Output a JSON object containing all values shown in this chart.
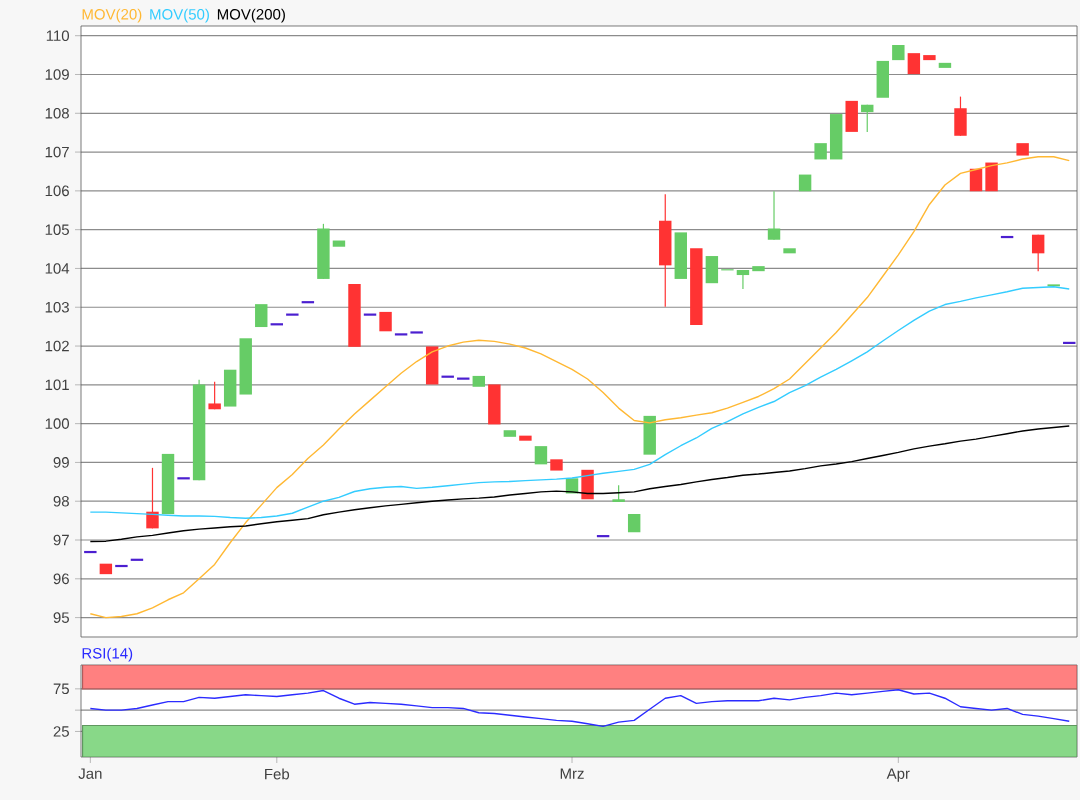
{
  "chart_data": [
    {
      "type": "candlestick",
      "legend": "top left",
      "grid": "y",
      "tick_labels": "y",
      "categories": [
        null,
        null,
        null,
        null,
        null,
        null,
        null,
        null,
        null,
        null,
        null,
        null,
        null,
        null,
        null,
        null,
        null,
        null,
        null,
        null,
        null,
        null,
        null,
        null,
        null,
        null,
        null,
        null,
        null,
        null,
        null,
        null,
        null,
        null,
        null,
        null,
        null,
        null,
        null,
        null,
        null,
        null,
        null,
        null,
        null,
        null,
        null,
        null,
        null,
        null,
        null,
        null,
        null,
        null,
        null,
        null,
        null,
        null,
        null,
        null,
        null,
        null,
        null,
        null
      ],
      "ylim": [
        94.5,
        110.25
      ],
      "yticks": [
        95,
        96,
        97,
        98,
        99,
        100,
        101,
        102,
        103,
        104,
        105,
        106,
        107,
        108,
        109,
        110
      ],
      "ohlc": [
        [
          96.69,
          96.69,
          96.69,
          96.69
        ],
        [
          96.39,
          96.39,
          96.12,
          96.12
        ],
        [
          96.33,
          96.33,
          96.33,
          96.33
        ],
        [
          96.49,
          96.49,
          96.49,
          96.49
        ],
        [
          97.73,
          98.86,
          97.3,
          97.3
        ],
        [
          97.67,
          99.22,
          97.67,
          99.22
        ],
        [
          98.59,
          98.59,
          98.59,
          98.59
        ],
        [
          98.54,
          101.13,
          98.54,
          101.01
        ],
        [
          100.52,
          101.08,
          100.37,
          100.37
        ],
        [
          100.44,
          101.39,
          100.44,
          101.39
        ],
        [
          100.75,
          102.2,
          100.75,
          102.2
        ],
        [
          102.49,
          103.08,
          102.49,
          103.08
        ],
        [
          102.56,
          102.56,
          102.56,
          102.56
        ],
        [
          102.81,
          102.81,
          102.81,
          102.81
        ],
        [
          103.13,
          103.13,
          103.13,
          103.13
        ],
        [
          103.73,
          105.15,
          103.73,
          105.03
        ],
        [
          104.56,
          104.72,
          104.56,
          104.72
        ],
        [
          103.6,
          103.6,
          101.98,
          101.98
        ],
        [
          102.81,
          102.81,
          102.81,
          102.81
        ],
        [
          102.88,
          102.88,
          102.38,
          102.38
        ],
        [
          102.3,
          102.3,
          102.3,
          102.3
        ],
        [
          102.35,
          102.35,
          102.35,
          102.35
        ],
        [
          101.99,
          101.99,
          101.01,
          101.01
        ],
        [
          101.21,
          101.21,
          101.21,
          101.21
        ],
        [
          101.16,
          101.16,
          101.16,
          101.16
        ],
        [
          100.95,
          101.23,
          100.95,
          101.23
        ],
        [
          101.01,
          101.01,
          99.98,
          99.98
        ],
        [
          99.66,
          99.83,
          99.66,
          99.83
        ],
        [
          99.69,
          99.69,
          99.56,
          99.56
        ],
        [
          98.95,
          99.42,
          98.95,
          99.42
        ],
        [
          99.08,
          99.08,
          98.79,
          98.79
        ],
        [
          98.2,
          98.59,
          98.2,
          98.59
        ],
        [
          98.81,
          98.81,
          98.05,
          98.05
        ],
        [
          97.1,
          97.1,
          97.1,
          97.1
        ],
        [
          97.98,
          98.41,
          97.98,
          98.05
        ],
        [
          97.2,
          97.67,
          97.2,
          97.67
        ],
        [
          99.2,
          100.2,
          99.2,
          100.2
        ],
        [
          105.23,
          105.91,
          103.01,
          104.08
        ],
        [
          103.73,
          104.93,
          103.73,
          104.93
        ],
        [
          104.52,
          104.52,
          102.54,
          102.54
        ],
        [
          103.62,
          104.32,
          103.62,
          104.32
        ],
        [
          103.95,
          103.98,
          103.95,
          103.98
        ],
        [
          103.83,
          103.96,
          103.47,
          103.96
        ],
        [
          103.93,
          104.06,
          103.93,
          104.06
        ],
        [
          104.74,
          105.99,
          104.74,
          105.03
        ],
        [
          104.39,
          104.52,
          104.39,
          104.52
        ],
        [
          105.99,
          106.42,
          105.99,
          106.42
        ],
        [
          106.81,
          107.23,
          106.81,
          107.23
        ],
        [
          106.81,
          107.98,
          106.81,
          107.98
        ],
        [
          108.32,
          108.32,
          107.52,
          107.52
        ],
        [
          108.03,
          108.22,
          107.52,
          108.22
        ],
        [
          108.4,
          109.35,
          108.4,
          109.35
        ],
        [
          109.37,
          109.76,
          109.37,
          109.76
        ],
        [
          109.55,
          109.55,
          109.01,
          109.01
        ],
        [
          109.5,
          109.5,
          109.37,
          109.37
        ],
        [
          109.17,
          109.3,
          109.17,
          109.3
        ],
        [
          108.13,
          108.43,
          107.42,
          107.42
        ],
        [
          106.57,
          106.57,
          105.99,
          105.99
        ],
        [
          106.73,
          106.73,
          105.99,
          105.99
        ],
        [
          104.81,
          104.81,
          104.81,
          104.81
        ],
        [
          107.23,
          107.23,
          106.91,
          106.91
        ],
        [
          104.87,
          104.87,
          103.93,
          104.39
        ],
        [
          103.54,
          103.59,
          103.54,
          103.59
        ],
        [
          102.08,
          102.08,
          102.08,
          102.08
        ]
      ],
      "colors": [
        "#4b1fd0",
        "#ff3333",
        "#4b1fd0",
        "#4b1fd0",
        "#ff3333",
        "#66cc66",
        "#4b1fd0",
        "#66cc66",
        "#ff3333",
        "#66cc66",
        "#66cc66",
        "#66cc66",
        "#4b1fd0",
        "#4b1fd0",
        "#4b1fd0",
        "#66cc66",
        "#66cc66",
        "#ff3333",
        "#4b1fd0",
        "#ff3333",
        "#4b1fd0",
        "#4b1fd0",
        "#ff3333",
        "#4b1fd0",
        "#4b1fd0",
        "#66cc66",
        "#ff3333",
        "#66cc66",
        "#ff3333",
        "#66cc66",
        "#ff3333",
        "#66cc66",
        "#ff3333",
        "#4b1fd0",
        "#66cc66",
        "#66cc66",
        "#66cc66",
        "#ff3333",
        "#66cc66",
        "#ff3333",
        "#66cc66",
        "#66cc66",
        "#66cc66",
        "#66cc66",
        "#66cc66",
        "#66cc66",
        "#66cc66",
        "#66cc66",
        "#66cc66",
        "#ff3333",
        "#66cc66",
        "#66cc66",
        "#66cc66",
        "#ff3333",
        "#ff3333",
        "#66cc66",
        "#ff3333",
        "#ff3333",
        "#ff3333",
        "#4b1fd0",
        "#ff3333",
        "#ff3333",
        "#66cc66",
        "#4b1fd0"
      ],
      "series": [
        {
          "name": "MOV(20)",
          "type": "line",
          "color": "#ffb833",
          "values": [
            95.1,
            95.0,
            95.03,
            95.1,
            95.25,
            95.46,
            95.64,
            96.0,
            96.37,
            96.93,
            97.45,
            97.9,
            98.35,
            98.69,
            99.1,
            99.45,
            99.86,
            100.25,
            100.6,
            100.95,
            101.3,
            101.6,
            101.85,
            102.0,
            102.1,
            102.15,
            102.12,
            102.05,
            101.95,
            101.8,
            101.6,
            101.4,
            101.15,
            100.8,
            100.4,
            100.08,
            100.02,
            100.1,
            100.15,
            100.22,
            100.28,
            100.4,
            100.55,
            100.7,
            100.9,
            101.15,
            101.55,
            101.95,
            102.35,
            102.8,
            103.25,
            103.8,
            104.35,
            104.95,
            105.65,
            106.15,
            106.45,
            106.55,
            106.65,
            106.72,
            106.82,
            106.88,
            106.88,
            106.78
          ]
        },
        {
          "name": "MOV(50)",
          "type": "line",
          "color": "#33ccff",
          "values": [
            97.72,
            97.72,
            97.7,
            97.68,
            97.66,
            97.64,
            97.62,
            97.62,
            97.61,
            97.58,
            97.56,
            97.58,
            97.62,
            97.69,
            97.85,
            98.0,
            98.1,
            98.25,
            98.32,
            98.36,
            98.38,
            98.33,
            98.36,
            98.4,
            98.44,
            98.48,
            98.5,
            98.51,
            98.53,
            98.55,
            98.57,
            98.6,
            98.66,
            98.72,
            98.77,
            98.82,
            98.95,
            99.2,
            99.43,
            99.63,
            99.88,
            100.05,
            100.25,
            100.42,
            100.57,
            100.8,
            100.98,
            101.2,
            101.4,
            101.62,
            101.85,
            102.13,
            102.4,
            102.66,
            102.9,
            103.07,
            103.15,
            103.24,
            103.32,
            103.4,
            103.49,
            103.51,
            103.53,
            103.47
          ]
        },
        {
          "name": "MOV(200)",
          "type": "line",
          "color": "#000000",
          "values": [
            96.96,
            96.97,
            97.02,
            97.08,
            97.12,
            97.18,
            97.24,
            97.28,
            97.31,
            97.34,
            97.36,
            97.42,
            97.47,
            97.51,
            97.55,
            97.65,
            97.72,
            97.78,
            97.83,
            97.88,
            97.92,
            97.96,
            98.0,
            98.03,
            98.06,
            98.08,
            98.11,
            98.16,
            98.2,
            98.24,
            98.26,
            98.24,
            98.2,
            98.2,
            98.22,
            98.24,
            98.32,
            98.38,
            98.43,
            98.5,
            98.56,
            98.61,
            98.67,
            98.7,
            98.74,
            98.78,
            98.84,
            98.91,
            98.96,
            99.02,
            99.1,
            99.18,
            99.26,
            99.35,
            99.42,
            99.48,
            99.55,
            99.6,
            99.67,
            99.74,
            99.81,
            99.86,
            99.9,
            99.94
          ]
        }
      ]
    },
    {
      "type": "line",
      "legend": "top left",
      "grid": "y",
      "categories": [
        "Jan",
        null,
        null,
        null,
        null,
        null,
        null,
        null,
        null,
        null,
        null,
        null,
        "Feb",
        null,
        null,
        null,
        null,
        null,
        null,
        null,
        null,
        null,
        null,
        null,
        null,
        null,
        null,
        null,
        null,
        null,
        null,
        "Mrz",
        null,
        null,
        null,
        null,
        null,
        null,
        null,
        null,
        null,
        null,
        null,
        null,
        null,
        null,
        null,
        null,
        null,
        null,
        null,
        null,
        "Apr",
        null,
        null,
        null,
        null,
        null,
        null,
        null,
        null,
        null,
        null,
        null
      ],
      "ylim": [
        -5,
        103
      ],
      "yticks": [
        25,
        {
          "value": 50,
          "label": null
        },
        75
      ],
      "bands": [
        {
          "axis": "y",
          "from": 75,
          "to": 103,
          "color": "#ff8080"
        },
        {
          "axis": "y",
          "from": -5,
          "to": 32,
          "color": "#88d888"
        }
      ],
      "series": [
        {
          "name": "RSI(14)",
          "color": "#2b2bff",
          "values": [
            52,
            50,
            50,
            52,
            56,
            60,
            60,
            65,
            64,
            66,
            68,
            67,
            66,
            68,
            70,
            73,
            64,
            57,
            59,
            58,
            57,
            55,
            53,
            53,
            52,
            47,
            46,
            44,
            42,
            40,
            38,
            37,
            34,
            31,
            36,
            38,
            51,
            64,
            67,
            58,
            60,
            61,
            61,
            61,
            64,
            62,
            65,
            67,
            70,
            68,
            70,
            72,
            74,
            69,
            70,
            64,
            54,
            52,
            50,
            52,
            45,
            43,
            40,
            37
          ]
        }
      ]
    }
  ]
}
